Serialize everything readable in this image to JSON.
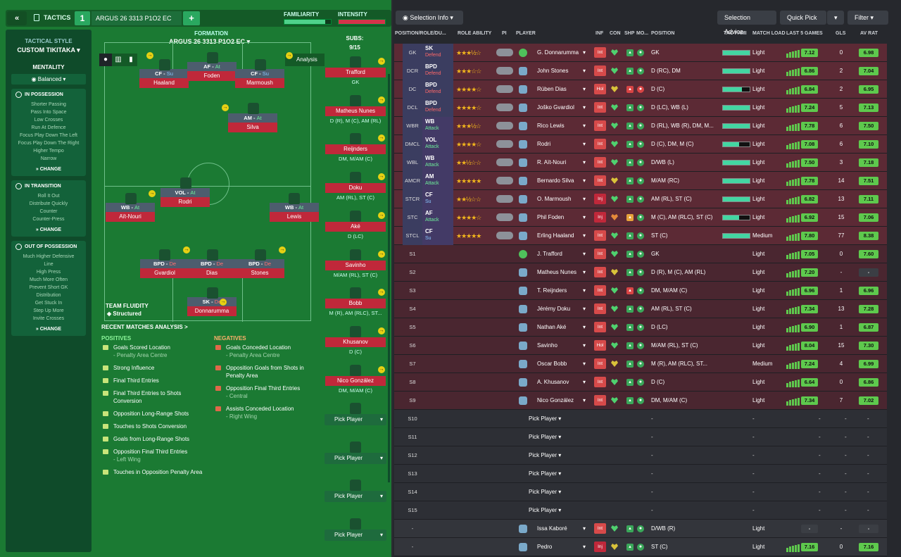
{
  "header": {
    "tactics_label": "TACTICS",
    "tactic_number": "1",
    "tactic_name": "ARGUS 26 3313 P1O2 EC",
    "familiarity_label": "FAMILIARITY",
    "intensity_label": "INTENSITY"
  },
  "sidebar": {
    "style_label": "TACTICAL STYLE",
    "style_value": "CUSTOM TIKITAKA",
    "mentality_label": "MENTALITY",
    "mentality_value": "Balanced",
    "in_possession": {
      "title": "IN POSSESSION",
      "items": [
        "Shorter Passing",
        "Pass Into Space",
        "Low Crosses",
        "Run At Defence",
        "Focus Play Down The Left",
        "Focus Play Down The Right",
        "Higher Tempo",
        "Narrow"
      ]
    },
    "in_transition": {
      "title": "IN TRANSITION",
      "items": [
        "Roll It Out",
        "Distribute Quickly",
        "Counter",
        "Counter-Press"
      ]
    },
    "out_of_possession": {
      "title": "OUT OF POSSESSION",
      "items": [
        "Much Higher Defensive",
        "Line",
        "High Press",
        "Much More Often",
        "Prevent Short GK",
        "Distribution",
        "Get Stuck In",
        "Step Up More",
        "Invite Crosses"
      ]
    },
    "change_label": "CHANGE"
  },
  "formation": {
    "label": "FORMATION",
    "name": "ARGUS 26 3313 P1O2 EC",
    "analysis_btn": "Analysis",
    "team_fluidity_label": "TEAM FLUIDITY",
    "team_fluidity_value": "Structured"
  },
  "pitch_players": [
    {
      "role": "CF",
      "duty": "Su",
      "name": "Haaland"
    },
    {
      "role": "AF",
      "duty": "At",
      "name": "Foden"
    },
    {
      "role": "CF",
      "duty": "Su",
      "name": "Marmoush"
    },
    {
      "role": "AM",
      "duty": "At",
      "name": "Silva"
    },
    {
      "role": "VOL",
      "duty": "At",
      "name": "Rodri"
    },
    {
      "role": "WB",
      "duty": "At",
      "name": "Aït-Nouri"
    },
    {
      "role": "WB",
      "duty": "At",
      "name": "Lewis"
    },
    {
      "role": "BPD",
      "duty": "De",
      "name": "Gvardiol"
    },
    {
      "role": "BPD",
      "duty": "De",
      "name": "Dias"
    },
    {
      "role": "BPD",
      "duty": "De",
      "name": "Stones"
    },
    {
      "role": "SK",
      "duty": "De",
      "name": "Donnarumma"
    }
  ],
  "subs": {
    "label": "SUBS:",
    "count": "9/15",
    "players": [
      {
        "name": "Trafford",
        "pos": "GK"
      },
      {
        "name": "Matheus Nunes",
        "pos": "D (R), M (C), AM (RL)"
      },
      {
        "name": "Reijnders",
        "pos": "DM, M/AM (C)"
      },
      {
        "name": "Doku",
        "pos": "AM (RL), ST (C)"
      },
      {
        "name": "Aké",
        "pos": "D (LC)"
      },
      {
        "name": "Savinho",
        "pos": "M/AM (RL), ST (C)"
      },
      {
        "name": "Bobb",
        "pos": "M (R), AM (RLC), ST..."
      },
      {
        "name": "Khusanov",
        "pos": "D (C)"
      },
      {
        "name": "Nico González",
        "pos": "DM, M/AM (C)"
      }
    ],
    "pick_label": "Pick Player"
  },
  "analysis": {
    "title": "RECENT MATCHES ANALYSIS >",
    "positives_label": "POSITIVES",
    "negatives_label": "NEGATIVES",
    "positives": [
      {
        "t": "Goals Scored Location",
        "s": "- Penalty Area Centre"
      },
      {
        "t": "Strong Influence",
        "s": ""
      },
      {
        "t": "Final Third Entries",
        "s": ""
      },
      {
        "t": "Final Third Entries to Shots Conversion",
        "s": ""
      },
      {
        "t": "Opposition Long-Range Shots",
        "s": ""
      },
      {
        "t": "Touches to Shots Conversion",
        "s": ""
      },
      {
        "t": "Goals from Long-Range Shots",
        "s": ""
      },
      {
        "t": "Opposition Final Third Entries",
        "s": "- Left Wing"
      },
      {
        "t": "Touches in Opposition Penalty Area",
        "s": ""
      }
    ],
    "negatives": [
      {
        "t": "Goals Conceded Location",
        "s": "- Penalty Area Centre"
      },
      {
        "t": "Opposition Goals from Shots in Penalty Area",
        "s": ""
      },
      {
        "t": "Opposition Final Third Entries",
        "s": "- Central"
      },
      {
        "t": "Assists Conceded Location",
        "s": "- Right Wing"
      }
    ]
  },
  "toolbar": {
    "selection_info": "Selection Info",
    "selection_advice": "Selection Advice",
    "quick_pick": "Quick Pick",
    "filter": "Filter"
  },
  "columns": {
    "pos": "POSITION/ROLE/DU...",
    "role_ability": "ROLE ABILITY",
    "pi": "PI",
    "player": "PLAYER",
    "inf": "INF",
    "con": "CON",
    "shp": "SHP",
    "mo": "MO...",
    "position": "POSITION",
    "tac": "TAC FAMI",
    "ml": "MATCH LOAD",
    "l5": "LAST 5 GAMES",
    "gls": "GLS",
    "avr": "AV RAT"
  },
  "rows": [
    {
      "slot": "GK",
      "role": "SK",
      "duty": "Defend",
      "stars": 3.5,
      "name": "G. Donnarumma",
      "inf": "Int",
      "position": "GK",
      "ml": "Light",
      "l5": "7.12",
      "gls": "0",
      "avr": "6.98"
    },
    {
      "slot": "DCR",
      "role": "BPD",
      "duty": "Defend",
      "stars": 3,
      "name": "John Stones",
      "inf": "Int",
      "position": "D (RC), DM",
      "ml": "Light",
      "l5": "6.86",
      "gls": "2",
      "avr": "7.04"
    },
    {
      "slot": "DC",
      "role": "BPD",
      "duty": "Defend",
      "stars": 4,
      "name": "Rúben Dias",
      "inf": "Hol",
      "position": "D (C)",
      "ml": "Light",
      "l5": "6.84",
      "gls": "2",
      "avr": "6.95"
    },
    {
      "slot": "DCL",
      "role": "BPD",
      "duty": "Defend",
      "stars": 4,
      "name": "Joško Gvardiol",
      "inf": "Int",
      "position": "D (LC), WB (L)",
      "ml": "Light",
      "l5": "7.24",
      "gls": "5",
      "avr": "7.13"
    },
    {
      "slot": "WBR",
      "role": "WB",
      "duty": "Attack",
      "stars": 3.5,
      "name": "Rico Lewis",
      "inf": "Int",
      "position": "D (RL), WB (R), DM, M...",
      "ml": "Light",
      "l5": "7.78",
      "gls": "6",
      "avr": "7.50"
    },
    {
      "slot": "DMCL",
      "role": "VOL",
      "duty": "Attack",
      "stars": 4,
      "name": "Rodri",
      "inf": "Int",
      "position": "D (C), DM, M (C)",
      "ml": "Light",
      "l5": "7.08",
      "gls": "6",
      "avr": "7.10"
    },
    {
      "slot": "WBL",
      "role": "WB",
      "duty": "Attack",
      "stars": 2.5,
      "name": "R. Aït-Nouri",
      "inf": "Int",
      "position": "D/WB (L)",
      "ml": "Light",
      "l5": "7.50",
      "gls": "3",
      "avr": "7.18"
    },
    {
      "slot": "AMCR",
      "role": "AM",
      "duty": "Attack",
      "stars": 5,
      "name": "Bernardo Silva",
      "inf": "Int",
      "position": "M/AM (RC)",
      "ml": "Light",
      "l5": "7.78",
      "gls": "14",
      "avr": "7.51"
    },
    {
      "slot": "STCR",
      "role": "CF",
      "duty": "Su",
      "stars": 2.5,
      "name": "O. Marmoush",
      "inf": "Inj",
      "position": "AM (RL), ST (C)",
      "ml": "Light",
      "l5": "6.82",
      "gls": "13",
      "avr": "7.11"
    },
    {
      "slot": "STC",
      "role": "AF",
      "duty": "Attack",
      "stars": 4,
      "name": "Phil Foden",
      "inf": "Inj",
      "position": "M (C), AM (RLC), ST (C)",
      "ml": "Light",
      "l5": "6.92",
      "gls": "15",
      "avr": "7.06"
    },
    {
      "slot": "STCL",
      "role": "CF",
      "duty": "Su",
      "stars": 5,
      "name": "Erling Haaland",
      "inf": "Int",
      "position": "ST (C)",
      "ml": "Medium",
      "l5": "7.80",
      "gls": "77",
      "avr": "8.38"
    },
    {
      "slot": "S1",
      "name": "J. Trafford",
      "inf": "Int",
      "position": "GK",
      "ml": "Light",
      "l5": "7.05",
      "gls": "0",
      "avr": "7.60"
    },
    {
      "slot": "S2",
      "name": "Matheus Nunes",
      "inf": "Int",
      "position": "D (R), M (C), AM (RL)",
      "ml": "Light",
      "l5": "7.20",
      "gls": "-",
      "avr": "-"
    },
    {
      "slot": "S3",
      "name": "T. Reijnders",
      "inf": "Int",
      "position": "DM, M/AM (C)",
      "ml": "Light",
      "l5": "6.96",
      "gls": "1",
      "avr": "6.96"
    },
    {
      "slot": "S4",
      "name": "Jérémy Doku",
      "inf": "Int",
      "position": "AM (RL), ST (C)",
      "ml": "Light",
      "l5": "7.34",
      "gls": "13",
      "avr": "7.28"
    },
    {
      "slot": "S5",
      "name": "Nathan Aké",
      "inf": "Int",
      "position": "D (LC)",
      "ml": "Light",
      "l5": "6.90",
      "gls": "1",
      "avr": "6.87"
    },
    {
      "slot": "S6",
      "name": "Savinho",
      "inf": "Hol",
      "position": "M/AM (RL), ST (C)",
      "ml": "Light",
      "l5": "8.04",
      "gls": "15",
      "avr": "7.30"
    },
    {
      "slot": "S7",
      "name": "Oscar Bobb",
      "inf": "Int",
      "position": "M (R), AM (RLC), ST...",
      "ml": "Medium",
      "l5": "7.24",
      "gls": "4",
      "avr": "6.99"
    },
    {
      "slot": "S8",
      "name": "A. Khusanov",
      "inf": "Int",
      "position": "D (C)",
      "ml": "Light",
      "l5": "6.64",
      "gls": "0",
      "avr": "6.86"
    },
    {
      "slot": "S9",
      "name": "Nico González",
      "inf": "Int",
      "position": "DM, M/AM (C)",
      "ml": "Light",
      "l5": "7.34",
      "gls": "7",
      "avr": "7.02"
    },
    {
      "slot": "S10",
      "pick": true
    },
    {
      "slot": "S11",
      "pick": true
    },
    {
      "slot": "S12",
      "pick": true
    },
    {
      "slot": "S13",
      "pick": true
    },
    {
      "slot": "S14",
      "pick": true
    },
    {
      "slot": "S15",
      "pick": true
    },
    {
      "slot": "-",
      "name": "Issa Kaboré",
      "inf": "Int",
      "position": "D/WB (R)",
      "ml": "Light",
      "l5": "-",
      "gls": "-",
      "avr": "-"
    },
    {
      "slot": "-",
      "name": "Pedro",
      "inf": "Inj",
      "position": "ST (C)",
      "ml": "Light",
      "l5": "7.16",
      "gls": "0",
      "avr": "7.16"
    }
  ],
  "dash": "-"
}
